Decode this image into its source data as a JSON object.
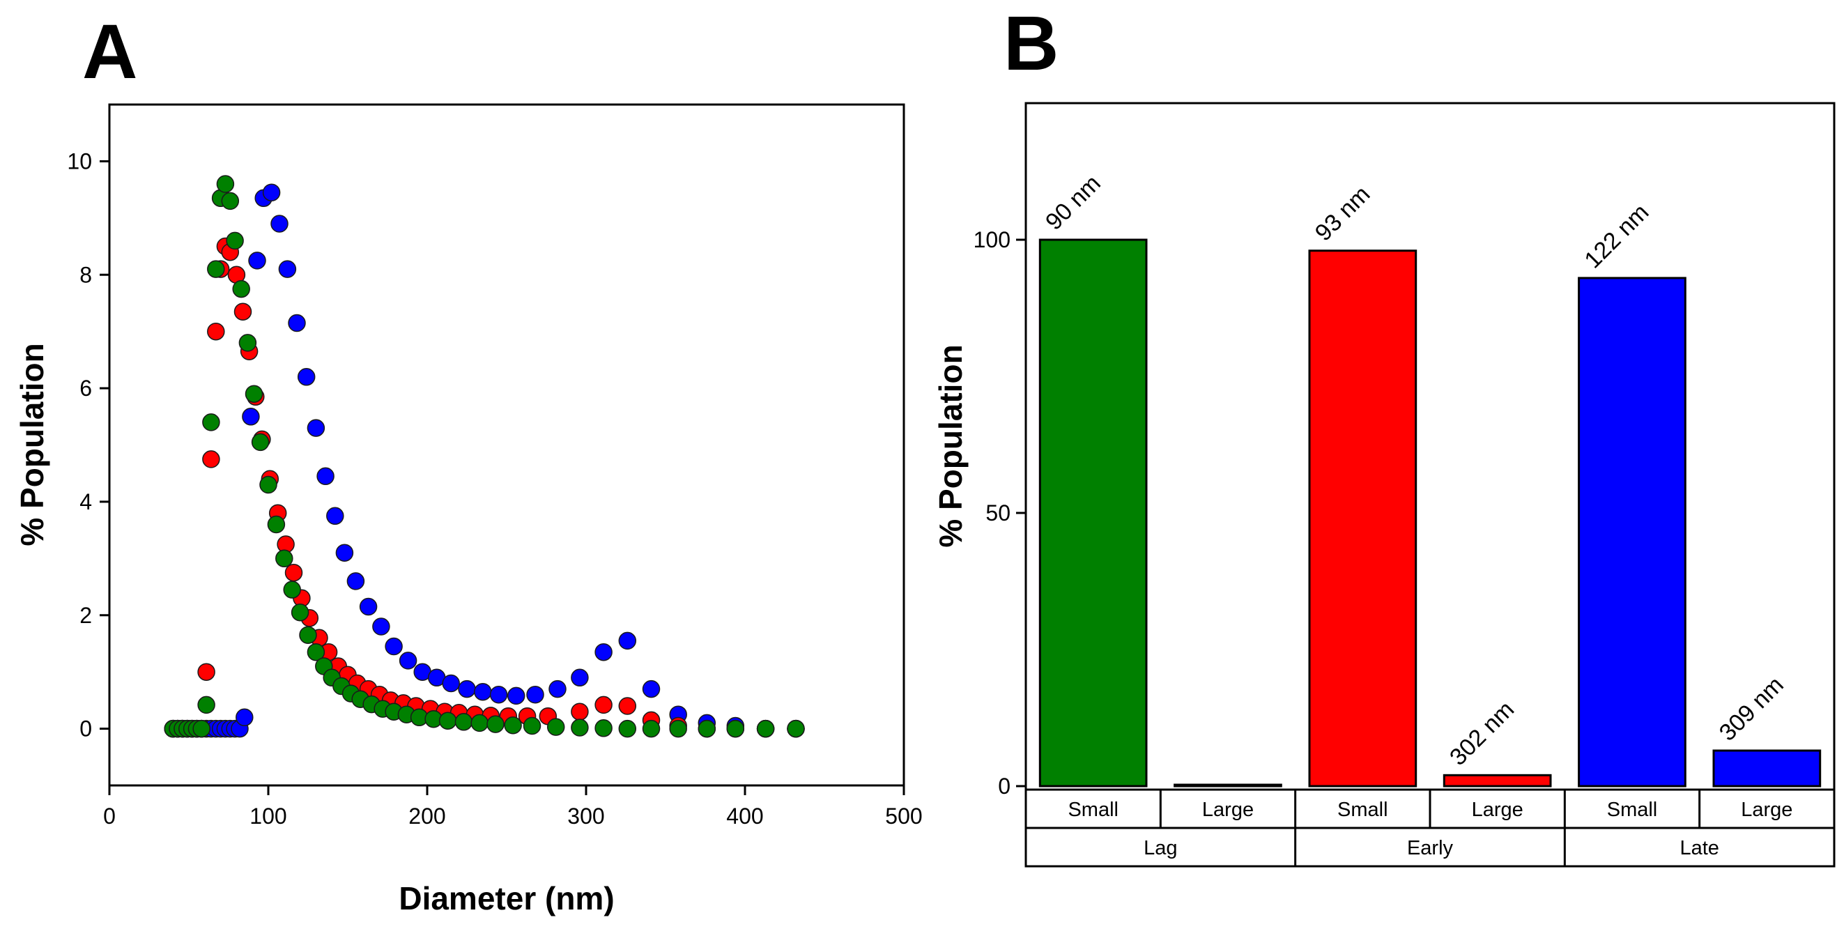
{
  "chart_data": [
    {
      "panel": "A",
      "type": "scatter",
      "xlabel": "Diameter (nm)",
      "ylabel": "% Population",
      "xlim": [
        0,
        500
      ],
      "ylim": [
        -1,
        11
      ],
      "xticks": [
        0,
        100,
        200,
        300,
        400,
        500
      ],
      "yticks": [
        0,
        2,
        4,
        6,
        8,
        10
      ],
      "series": [
        {
          "name": "blue",
          "color": "#0000ff",
          "x": [
            40,
            43,
            46,
            49,
            52,
            55,
            58,
            61,
            64,
            67,
            70,
            73,
            76,
            79,
            82,
            85,
            89,
            93,
            97,
            102,
            107,
            112,
            118,
            124,
            130,
            136,
            142,
            148,
            155,
            163,
            171,
            179,
            188,
            197,
            206,
            215,
            225,
            235,
            245,
            256,
            268,
            282,
            296,
            311,
            326,
            341,
            358,
            376,
            394,
            413,
            432
          ],
          "y": [
            0,
            0,
            0,
            0,
            0,
            0,
            0,
            0,
            0,
            0,
            0,
            0,
            0,
            0,
            0,
            0.2,
            5.5,
            8.25,
            9.35,
            9.45,
            8.9,
            8.1,
            7.15,
            6.2,
            5.3,
            4.45,
            3.75,
            3.1,
            2.6,
            2.15,
            1.8,
            1.45,
            1.2,
            1.0,
            0.9,
            0.8,
            0.7,
            0.65,
            0.6,
            0.58,
            0.6,
            0.7,
            0.9,
            1.35,
            1.55,
            0.7,
            0.25,
            0.1,
            0.05,
            0,
            0
          ]
        },
        {
          "name": "red",
          "color": "#ff0000",
          "x": [
            40,
            43,
            46,
            49,
            52,
            55,
            58,
            61,
            64,
            67,
            70,
            73,
            76,
            80,
            84,
            88,
            92,
            96,
            101,
            106,
            111,
            116,
            121,
            126,
            132,
            138,
            144,
            150,
            156,
            163,
            170,
            177,
            185,
            193,
            202,
            211,
            220,
            230,
            240,
            251,
            263,
            276,
            296,
            311,
            326,
            341,
            358,
            376,
            394,
            413,
            432
          ],
          "y": [
            0,
            0,
            0,
            0,
            0,
            0,
            0,
            1.0,
            4.75,
            7.0,
            8.1,
            8.5,
            8.4,
            8.0,
            7.35,
            6.65,
            5.85,
            5.1,
            4.4,
            3.8,
            3.25,
            2.75,
            2.3,
            1.95,
            1.6,
            1.35,
            1.1,
            0.95,
            0.8,
            0.7,
            0.6,
            0.5,
            0.45,
            0.4,
            0.35,
            0.3,
            0.28,
            0.25,
            0.23,
            0.22,
            0.22,
            0.22,
            0.3,
            0.42,
            0.4,
            0.15,
            0.05,
            0,
            0,
            0,
            0
          ]
        },
        {
          "name": "green",
          "color": "#008000",
          "x": [
            40,
            43,
            46,
            49,
            52,
            55,
            58,
            61,
            64,
            67,
            70,
            73,
            76,
            79,
            83,
            87,
            91,
            95,
            100,
            105,
            110,
            115,
            120,
            125,
            130,
            135,
            140,
            146,
            152,
            158,
            165,
            172,
            179,
            187,
            195,
            204,
            213,
            223,
            233,
            243,
            254,
            266,
            281,
            296,
            311,
            326,
            341,
            358,
            376,
            394,
            413,
            432
          ],
          "y": [
            0,
            0,
            0,
            0,
            0,
            0,
            0,
            0.42,
            5.4,
            8.1,
            9.35,
            9.6,
            9.3,
            8.6,
            7.75,
            6.8,
            5.9,
            5.05,
            4.3,
            3.6,
            3.0,
            2.45,
            2.05,
            1.65,
            1.35,
            1.1,
            0.9,
            0.75,
            0.62,
            0.52,
            0.43,
            0.35,
            0.3,
            0.25,
            0.2,
            0.17,
            0.14,
            0.12,
            0.1,
            0.08,
            0.06,
            0.05,
            0.03,
            0.02,
            0.01,
            0,
            0,
            0,
            0,
            0,
            0,
            0
          ]
        }
      ]
    },
    {
      "panel": "B",
      "type": "bar",
      "ylabel": "% Population",
      "ylim": [
        0,
        125
      ],
      "yticks": [
        0,
        50,
        100
      ],
      "bars": [
        {
          "group": "Lag",
          "size": "Small",
          "value": 100,
          "label": "90 nm",
          "color": "#008000"
        },
        {
          "group": "Lag",
          "size": "Large",
          "value": 0,
          "label": "",
          "color": "#008000"
        },
        {
          "group": "Early",
          "size": "Small",
          "value": 98,
          "label": "93 nm",
          "color": "#ff0000"
        },
        {
          "group": "Early",
          "size": "Large",
          "value": 2,
          "label": "302 nm",
          "color": "#ff0000"
        },
        {
          "group": "Late",
          "size": "Small",
          "value": 93,
          "label": "122 nm",
          "color": "#0000ff"
        },
        {
          "group": "Late",
          "size": "Large",
          "value": 6.5,
          "label": "309 nm",
          "color": "#0000ff"
        }
      ],
      "groups": [
        "Lag",
        "Early",
        "Late"
      ]
    }
  ]
}
